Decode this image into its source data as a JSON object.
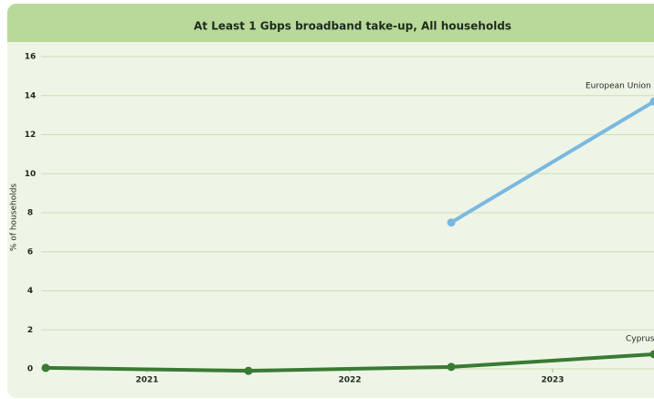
{
  "chart_data": {
    "type": "line",
    "title": "At Least 1 Gbps broadband take-up, All households",
    "y_label": "% of households",
    "x": [
      2020.5,
      2021.5,
      2022.5,
      2023.5
    ],
    "xlim": [
      2020.5,
      2023.5
    ],
    "xticks": [
      2021,
      2022,
      2023
    ],
    "ylim": [
      0,
      16
    ],
    "yticks": [
      0,
      2,
      4,
      6,
      8,
      10,
      12,
      14,
      16
    ],
    "grid": true,
    "series": [
      {
        "name": "European Union",
        "color": "#7ab8e0",
        "values": [
          null,
          null,
          7.5,
          13.7
        ]
      },
      {
        "name": "Cyprus",
        "color": "#3a7a34",
        "values": [
          0.05,
          -0.1,
          0.1,
          0.75
        ]
      }
    ]
  }
}
